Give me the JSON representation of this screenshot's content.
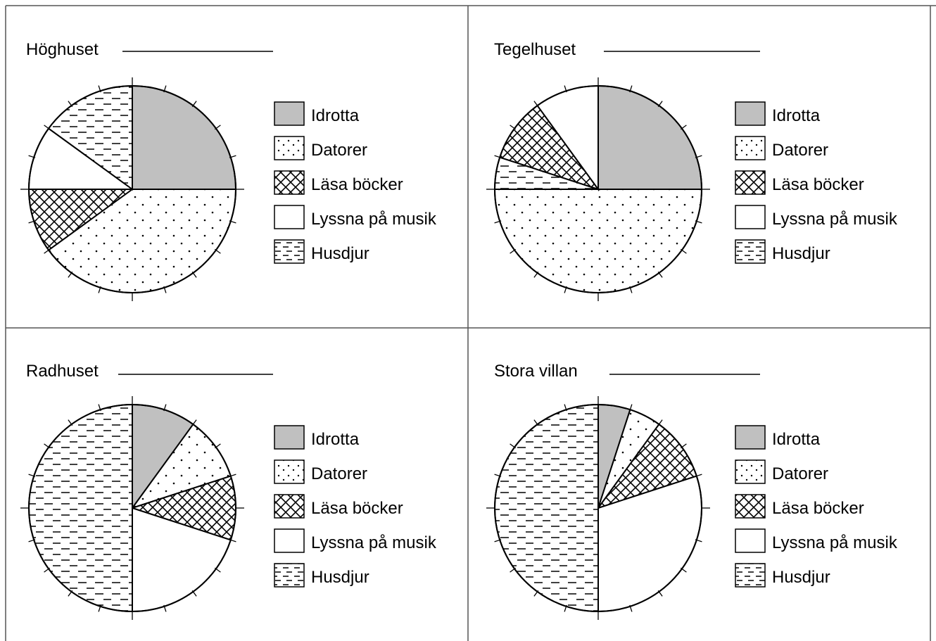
{
  "colors": {
    "idrotta_fill": "#c0c0c0",
    "stroke": "#000000",
    "background": "#ffffff"
  },
  "legend": [
    "Idrotta",
    "Datorer",
    "Läsa böcker",
    "Lyssna på musik",
    "Husdjur"
  ],
  "chart_data": [
    {
      "type": "pie",
      "title": "Höghuset",
      "categories": [
        "Idrotta",
        "Datorer",
        "Läsa böcker",
        "Lyssna på musik",
        "Husdjur"
      ],
      "values": [
        25,
        40,
        10,
        10,
        15
      ],
      "ticks": 20,
      "legend": "right"
    },
    {
      "type": "pie",
      "title": "Tegelhuset",
      "categories": [
        "Idrotta",
        "Datorer",
        "Husdjur",
        "Läsa böcker",
        "Lyssna på musik"
      ],
      "values": [
        25,
        50,
        5,
        10,
        10
      ],
      "ticks": 20,
      "legend": "right"
    },
    {
      "type": "pie",
      "title": "Radhuset",
      "categories": [
        "Idrotta",
        "Datorer",
        "Läsa böcker",
        "Lyssna på musik",
        "Husdjur"
      ],
      "values": [
        10,
        10,
        10,
        20,
        50
      ],
      "ticks": 20,
      "legend": "right"
    },
    {
      "type": "pie",
      "title": "Stora villan",
      "categories": [
        "Idrotta",
        "Datorer",
        "Läsa böcker",
        "Lyssna på musik",
        "Husdjur"
      ],
      "values": [
        5,
        5,
        10,
        30,
        50
      ],
      "ticks": 20,
      "legend": "right"
    }
  ]
}
